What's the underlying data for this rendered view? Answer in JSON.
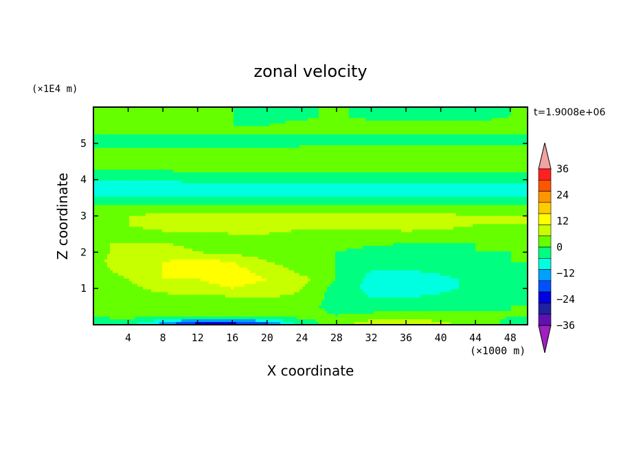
{
  "chart_data": {
    "type": "heatmap",
    "title": "zonal velocity",
    "xlabel": "X coordinate",
    "ylabel": "Z coordinate",
    "x_unit_label": "(×1000 m)",
    "y_unit_label": "(×1E4 m)",
    "time_label": "t=1.9008e+06",
    "xlim": [
      0,
      50
    ],
    "ylim": [
      0,
      6
    ],
    "x_ticks": [
      4,
      8,
      12,
      16,
      20,
      24,
      28,
      32,
      36,
      40,
      44,
      48
    ],
    "x_tick_labels": [
      "4",
      "8",
      "12",
      "16",
      "20",
      "24",
      "28",
      "32",
      "36",
      "40",
      "44",
      "48"
    ],
    "y_ticks": [
      1,
      2,
      3,
      4,
      5
    ],
    "y_tick_labels": [
      "1",
      "2",
      "3",
      "4",
      "5"
    ],
    "colorbar": {
      "levels": [
        -42,
        -36,
        -30,
        -24,
        -18,
        -12,
        -6,
        0,
        6,
        12,
        18,
        24,
        30,
        36,
        42
      ],
      "tick_values": [
        36,
        24,
        12,
        0,
        -12,
        -24,
        -36
      ],
      "tick_labels": [
        "36",
        "24",
        "12",
        "0",
        "−12",
        "−24",
        "−36"
      ],
      "colors_top_to_bottom": [
        "#f2a2a2",
        "#ff2020",
        "#ff5500",
        "#ff9600",
        "#ffcc00",
        "#ffff00",
        "#c8ff00",
        "#66ff00",
        "#00ff80",
        "#00ffe0",
        "#00a0ff",
        "#0050ff",
        "#0000e0",
        "#2020a0",
        "#6010b0",
        "#a020c0"
      ],
      "extend": "both"
    },
    "x": [
      0,
      4,
      8,
      12,
      16,
      20,
      24,
      28,
      32,
      36,
      40,
      44,
      48,
      50
    ],
    "z": [
      0,
      0.25,
      0.5,
      0.75,
      1,
      1.25,
      1.5,
      1.75,
      2,
      2.25,
      2.5,
      2.75,
      3,
      3.25,
      3.5,
      3.75,
      4,
      4.25,
      4.5,
      4.75,
      5,
      5.25,
      5.5,
      5.75,
      6
    ],
    "u": [
      [
        -2,
        -4,
        -16,
        -30,
        -30,
        -22,
        -4,
        4,
        10,
        12,
        8,
        4,
        -2,
        -2
      ],
      [
        0,
        2,
        2,
        2,
        3,
        4,
        2,
        0,
        2,
        3,
        2,
        2,
        0,
        0
      ],
      [
        0,
        2,
        2,
        3,
        3,
        3,
        2,
        -2,
        -4,
        -3,
        -2,
        -2,
        0,
        0
      ],
      [
        0,
        3,
        4,
        5,
        5,
        6,
        5,
        -3,
        -6,
        -6,
        -4,
        -3,
        -2,
        -2
      ],
      [
        2,
        4,
        8,
        10,
        12,
        10,
        6,
        -2,
        -8,
        -12,
        -8,
        -4,
        -3,
        -3
      ],
      [
        2,
        6,
        12,
        12,
        14,
        12,
        8,
        0,
        -8,
        -12,
        -8,
        -4,
        -2,
        -2
      ],
      [
        4,
        8,
        12,
        14,
        14,
        10,
        4,
        0,
        -6,
        -6,
        -4,
        -2,
        -2,
        -2
      ],
      [
        4,
        10,
        12,
        13,
        12,
        6,
        2,
        0,
        -4,
        -4,
        -2,
        -1,
        0,
        0
      ],
      [
        4,
        8,
        8,
        6,
        4,
        3,
        2,
        0,
        -2,
        -2,
        -2,
        0,
        0,
        0
      ],
      [
        6,
        6,
        6,
        5,
        4,
        3,
        3,
        2,
        1,
        0,
        0,
        0,
        0,
        0
      ],
      [
        4,
        4,
        5,
        5,
        6,
        6,
        5,
        5,
        4,
        4,
        4,
        3,
        3,
        3
      ],
      [
        5,
        6,
        8,
        8,
        8,
        8,
        7,
        7,
        8,
        10,
        8,
        6,
        6,
        6
      ],
      [
        6,
        6,
        7,
        7,
        8,
        8,
        7,
        7,
        7,
        7,
        7,
        6,
        6,
        6
      ],
      [
        3,
        3,
        3,
        3,
        3,
        3,
        3,
        3,
        3,
        3,
        3,
        3,
        3,
        3
      ],
      [
        -6,
        -6,
        -6,
        -6,
        -6,
        -6,
        -6,
        -6,
        -6,
        -6,
        -6,
        -6,
        -6,
        -6
      ],
      [
        -10,
        -10,
        -10,
        -8,
        -8,
        -8,
        -8,
        -8,
        -8,
        -8,
        -8,
        -8,
        -8,
        -8
      ],
      [
        -6,
        -6,
        -6,
        -4,
        -4,
        -4,
        -4,
        -4,
        -5,
        -5,
        -4,
        -4,
        -4,
        -4
      ],
      [
        0,
        0,
        0,
        1,
        1,
        1,
        1,
        1,
        1,
        1,
        1,
        1,
        1,
        1
      ],
      [
        4,
        4,
        4,
        4,
        4,
        4,
        4,
        4,
        4,
        4,
        4,
        4,
        4,
        4
      ],
      [
        2,
        2,
        2,
        2,
        2,
        2,
        2,
        2,
        6,
        4,
        2,
        2,
        2,
        2
      ],
      [
        -2,
        -2,
        -2,
        -2,
        -2,
        -2,
        -1,
        -1,
        -1,
        -1,
        -1,
        -1,
        -1,
        -1
      ],
      [
        0,
        0,
        0,
        0,
        0,
        0,
        0,
        0,
        0,
        0,
        0,
        0,
        0,
        0
      ],
      [
        2,
        2,
        1,
        0,
        0,
        0,
        1,
        2,
        3,
        3,
        2,
        2,
        2,
        2
      ],
      [
        0,
        0,
        0,
        0,
        0,
        -1,
        -1,
        1,
        -2,
        -3,
        -3,
        -2,
        0,
        0
      ],
      [
        0,
        0,
        0,
        0,
        0,
        0,
        0,
        0,
        0,
        0,
        0,
        0,
        0,
        0
      ]
    ]
  }
}
